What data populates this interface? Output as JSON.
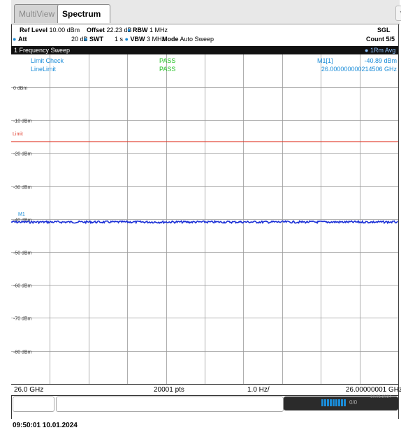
{
  "tabs": {
    "multiview": "MultiView",
    "spectrum": "Spectrum"
  },
  "settings": {
    "ref_level_label": "Ref Level",
    "ref_level_value": "10.00 dBm",
    "offset_label": "Offset",
    "offset_value": "22.23 dB",
    "rbw_label": "RBW",
    "rbw_value": "1 MHz",
    "att_label": "Att",
    "att_value": "20 dB",
    "swt_label": "SWT",
    "swt_value": "1 s",
    "vbw_label": "VBW",
    "vbw_value": "3 MHz",
    "mode_label": "Mode",
    "mode_value": "Auto Sweep",
    "sgl": "SGL",
    "count": "Count 5/5"
  },
  "window": {
    "title": "1 Frequency Sweep",
    "trace": "1Rm Avg"
  },
  "plot": {
    "limit_check_label": "Limit Check",
    "limit_check_result": "PASS",
    "line_limit_label": "LineLimit",
    "line_limit_result": "PASS",
    "marker_name": "M1[1]",
    "marker_level": "-40.89 dBm",
    "marker_freq": "26.000000000214506 GHz",
    "limit_label": "Limit",
    "marker_tag": "M1",
    "y_labels": [
      "0 dBm",
      "-10 dBm",
      "-20 dBm",
      "-30 dBm",
      "-40 dBm",
      "-50 dBm",
      "-60 dBm",
      "-70 dBm",
      "-80 dBm"
    ],
    "colors": {
      "trace": "#1a2fd6",
      "limit": "#e03a2a",
      "info": "#1a8cd8",
      "pass": "#22c022"
    }
  },
  "footer": {
    "start_freq": "26.0 GHz",
    "points": "20001 pts",
    "span_per_div": "1.0 Hz/",
    "stop_freq": "26.00000001 GHz"
  },
  "status": {
    "value": "0/0",
    "date": "10.01.2024"
  },
  "timestamp": "09:50:01  10.01.2024"
}
